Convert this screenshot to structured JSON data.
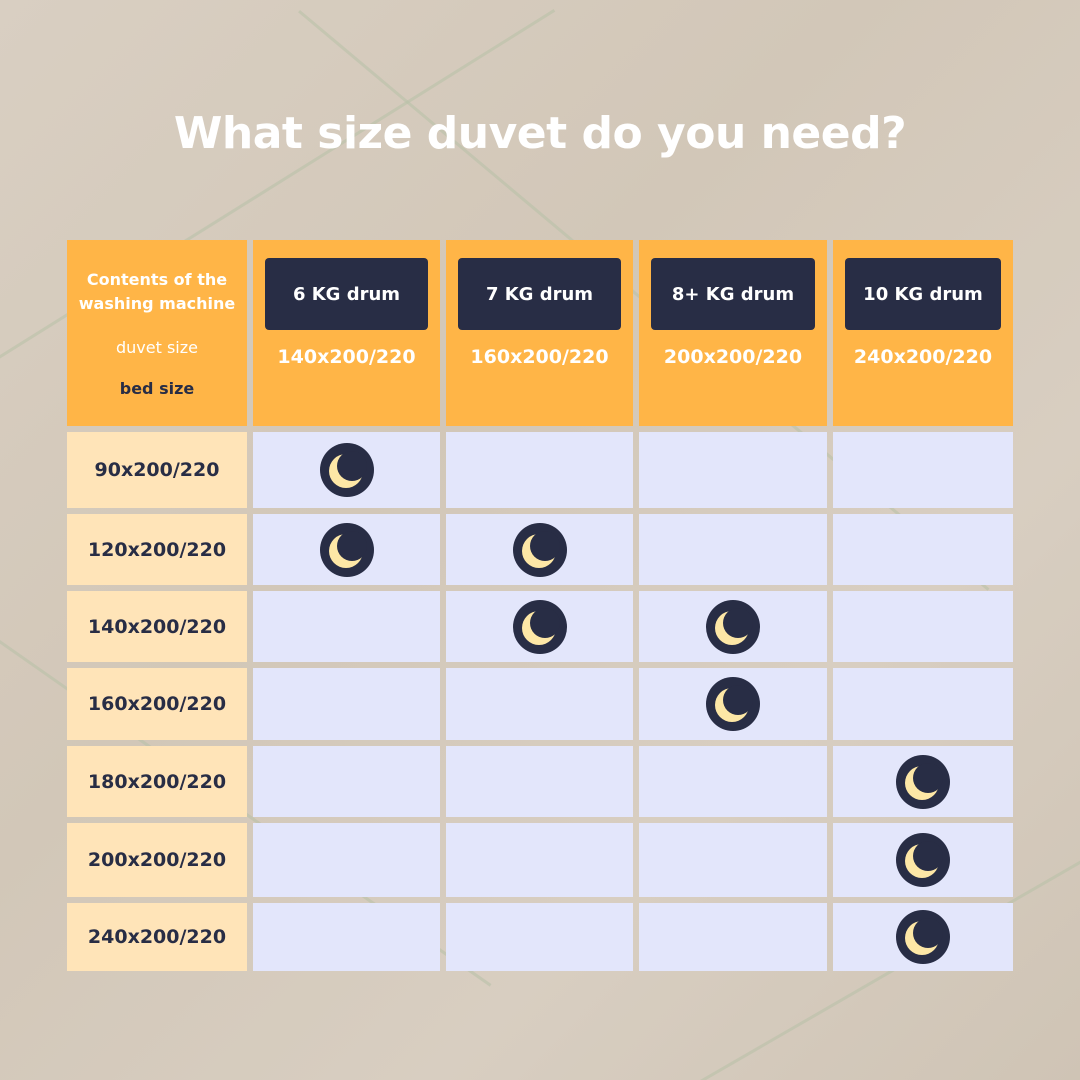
{
  "title": "What size duvet do you need?",
  "corner": {
    "line1": "Contents of the washing machine",
    "line2": "duvet size",
    "line3": "bed size"
  },
  "columns": [
    {
      "drum": "6 KG drum",
      "duvet": "140x200/220"
    },
    {
      "drum": "7 KG drum",
      "duvet": "160x200/220"
    },
    {
      "drum": "8+ KG drum",
      "duvet": "200x200/220"
    },
    {
      "drum": "10 KG drum",
      "duvet": "240x200/220"
    }
  ],
  "rows": [
    {
      "bed": "90x200/220",
      "marks": [
        1,
        0,
        0,
        0
      ]
    },
    {
      "bed": "120x200/220",
      "marks": [
        1,
        1,
        0,
        0
      ]
    },
    {
      "bed": "140x200/220",
      "marks": [
        0,
        1,
        1,
        0
      ]
    },
    {
      "bed": "160x200/220",
      "marks": [
        0,
        0,
        1,
        0
      ]
    },
    {
      "bed": "180x200/220",
      "marks": [
        0,
        0,
        0,
        1
      ]
    },
    {
      "bed": "200x200/220",
      "marks": [
        0,
        0,
        0,
        1
      ]
    },
    {
      "bed": "240x200/220",
      "marks": [
        0,
        0,
        0,
        1
      ]
    }
  ],
  "mark_icon": "moon-icon",
  "colors": {
    "header": "#ffb547",
    "row_label": "#ffe4b8",
    "cell": "#e3e6fb",
    "navy": "#282d45",
    "moon": "#fde7a6"
  }
}
